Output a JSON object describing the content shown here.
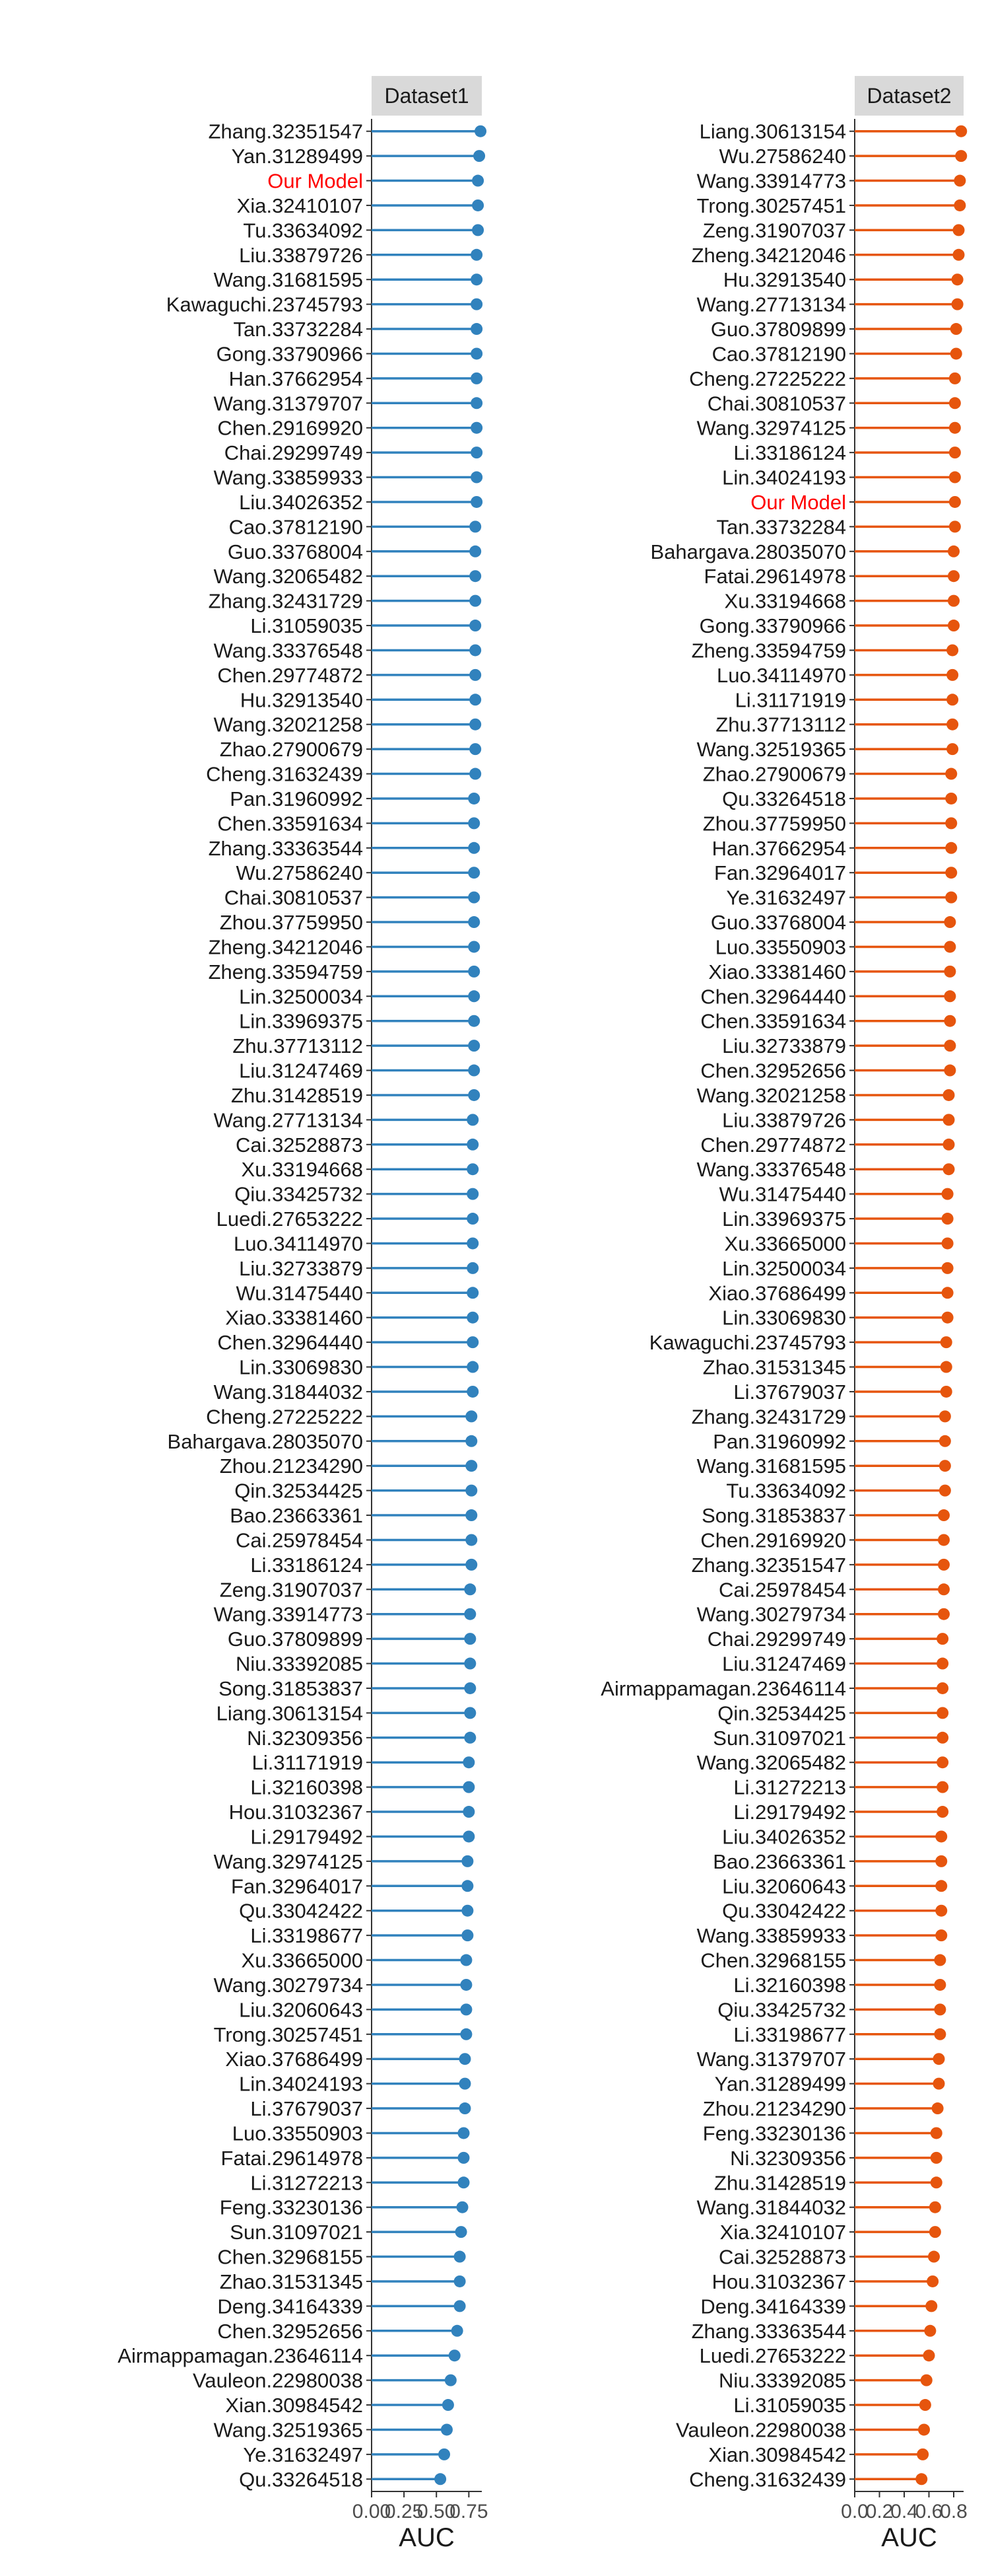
{
  "chart_data": [
    {
      "type": "lollipop",
      "panel_title": "Dataset1",
      "xlabel": "AUC",
      "xlim": [
        0,
        0.85
      ],
      "xticks": [
        0.0,
        0.25,
        0.5,
        0.75
      ],
      "xtick_labels": [
        "0.00",
        "0.25",
        "0.50",
        "0.75"
      ],
      "color": "#3182bd",
      "highlight": "Our Model",
      "highlight_color": "#ff0000",
      "categories": [
        "Zhang.32351547",
        "Yan.31289499",
        "Our Model",
        "Xia.32410107",
        "Tu.33634092",
        "Liu.33879726",
        "Wang.31681595",
        "Kawaguchi.23745793",
        "Tan.33732284",
        "Gong.33790966",
        "Han.37662954",
        "Wang.31379707",
        "Chen.29169920",
        "Chai.29299749",
        "Wang.33859933",
        "Liu.34026352",
        "Cao.37812190",
        "Guo.33768004",
        "Wang.32065482",
        "Zhang.32431729",
        "Li.31059035",
        "Wang.33376548",
        "Chen.29774872",
        "Hu.32913540",
        "Wang.32021258",
        "Zhao.27900679",
        "Cheng.31632439",
        "Pan.31960992",
        "Chen.33591634",
        "Zhang.33363544",
        "Wu.27586240",
        "Chai.30810537",
        "Zhou.37759950",
        "Zheng.34212046",
        "Zheng.33594759",
        "Lin.32500034",
        "Lin.33969375",
        "Zhu.37713112",
        "Liu.31247469",
        "Zhu.31428519",
        "Wang.27713134",
        "Cai.32528873",
        "Xu.33194668",
        "Qiu.33425732",
        "Luedi.27653222",
        "Luo.34114970",
        "Liu.32733879",
        "Wu.31475440",
        "Xiao.33381460",
        "Chen.32964440",
        "Lin.33069830",
        "Wang.31844032",
        "Cheng.27225222",
        "Bahargava.28035070",
        "Zhou.21234290",
        "Qin.32534425",
        "Bao.23663361",
        "Cai.25978454",
        "Li.33186124",
        "Zeng.31907037",
        "Wang.33914773",
        "Guo.37809899",
        "Niu.33392085",
        "Song.31853837",
        "Liang.30613154",
        "Ni.32309356",
        "Li.31171919",
        "Li.32160398",
        "Hou.31032367",
        "Li.29179492",
        "Wang.32974125",
        "Fan.32964017",
        "Qu.33042422",
        "Li.33198677",
        "Xu.33665000",
        "Wang.30279734",
        "Liu.32060643",
        "Trong.30257451",
        "Xiao.37686499",
        "Lin.34024193",
        "Li.37679037",
        "Luo.33550903",
        "Fatai.29614978",
        "Li.31272213",
        "Feng.33230136",
        "Sun.31097021",
        "Chen.32968155",
        "Zhao.31531345",
        "Deng.34164339",
        "Chen.32952656",
        "Airmappamagan.23646114",
        "Vauleon.22980038",
        "Xian.30984542",
        "Wang.32519365",
        "Ye.31632497",
        "Qu.33264518"
      ],
      "values": [
        0.84,
        0.83,
        0.82,
        0.82,
        0.82,
        0.81,
        0.81,
        0.81,
        0.81,
        0.81,
        0.81,
        0.81,
        0.81,
        0.81,
        0.81,
        0.81,
        0.8,
        0.8,
        0.8,
        0.8,
        0.8,
        0.8,
        0.8,
        0.8,
        0.8,
        0.8,
        0.8,
        0.79,
        0.79,
        0.79,
        0.79,
        0.79,
        0.79,
        0.79,
        0.79,
        0.79,
        0.79,
        0.79,
        0.79,
        0.79,
        0.78,
        0.78,
        0.78,
        0.78,
        0.78,
        0.78,
        0.78,
        0.78,
        0.78,
        0.78,
        0.78,
        0.78,
        0.77,
        0.77,
        0.77,
        0.77,
        0.77,
        0.77,
        0.77,
        0.76,
        0.76,
        0.76,
        0.76,
        0.76,
        0.76,
        0.76,
        0.75,
        0.75,
        0.75,
        0.75,
        0.74,
        0.74,
        0.74,
        0.74,
        0.73,
        0.73,
        0.73,
        0.73,
        0.72,
        0.72,
        0.72,
        0.71,
        0.71,
        0.71,
        0.7,
        0.69,
        0.68,
        0.68,
        0.68,
        0.66,
        0.64,
        0.61,
        0.59,
        0.58,
        0.56,
        0.53
      ]
    },
    {
      "type": "lollipop",
      "panel_title": "Dataset2",
      "xlabel": "AUC",
      "xlim": [
        0,
        0.88
      ],
      "xticks": [
        0.0,
        0.2,
        0.4,
        0.6,
        0.8
      ],
      "xtick_labels": [
        "0.0",
        "0.2",
        "0.4",
        "0.6",
        "0.8"
      ],
      "color": "#e6550d",
      "highlight": "Our Model",
      "highlight_color": "#ff0000",
      "categories": [
        "Liang.30613154",
        "Wu.27586240",
        "Wang.33914773",
        "Trong.30257451",
        "Zeng.31907037",
        "Zheng.34212046",
        "Hu.32913540",
        "Wang.27713134",
        "Guo.37809899",
        "Cao.37812190",
        "Cheng.27225222",
        "Chai.30810537",
        "Wang.32974125",
        "Li.33186124",
        "Lin.34024193",
        "Our Model",
        "Tan.33732284",
        "Bahargava.28035070",
        "Fatai.29614978",
        "Xu.33194668",
        "Gong.33790966",
        "Zheng.33594759",
        "Luo.34114970",
        "Li.31171919",
        "Zhu.37713112",
        "Wang.32519365",
        "Zhao.27900679",
        "Qu.33264518",
        "Zhou.37759950",
        "Han.37662954",
        "Fan.32964017",
        "Ye.31632497",
        "Guo.33768004",
        "Luo.33550903",
        "Xiao.33381460",
        "Chen.32964440",
        "Chen.33591634",
        "Liu.32733879",
        "Chen.32952656",
        "Wang.32021258",
        "Liu.33879726",
        "Chen.29774872",
        "Wang.33376548",
        "Wu.31475440",
        "Lin.33969375",
        "Xu.33665000",
        "Lin.32500034",
        "Xiao.37686499",
        "Lin.33069830",
        "Kawaguchi.23745793",
        "Zhao.31531345",
        "Li.37679037",
        "Zhang.32431729",
        "Pan.31960992",
        "Wang.31681595",
        "Tu.33634092",
        "Song.31853837",
        "Chen.29169920",
        "Zhang.32351547",
        "Cai.25978454",
        "Wang.30279734",
        "Chai.29299749",
        "Liu.31247469",
        "Airmappamagan.23646114",
        "Qin.32534425",
        "Sun.31097021",
        "Wang.32065482",
        "Li.31272213",
        "Li.29179492",
        "Liu.34026352",
        "Bao.23663361",
        "Liu.32060643",
        "Qu.33042422",
        "Wang.33859933",
        "Chen.32968155",
        "Li.32160398",
        "Qiu.33425732",
        "Li.33198677",
        "Wang.31379707",
        "Yan.31289499",
        "Zhou.21234290",
        "Feng.33230136",
        "Ni.32309356",
        "Zhu.31428519",
        "Wang.31844032",
        "Xia.32410107",
        "Cai.32528873",
        "Hou.31032367",
        "Deng.34164339",
        "Zhang.33363544",
        "Luedi.27653222",
        "Niu.33392085",
        "Li.31059035",
        "Vauleon.22980038",
        "Xian.30984542",
        "Cheng.31632439"
      ],
      "values": [
        0.86,
        0.86,
        0.85,
        0.85,
        0.84,
        0.84,
        0.83,
        0.83,
        0.82,
        0.82,
        0.81,
        0.81,
        0.81,
        0.81,
        0.81,
        0.81,
        0.81,
        0.8,
        0.8,
        0.8,
        0.8,
        0.79,
        0.79,
        0.79,
        0.79,
        0.79,
        0.78,
        0.78,
        0.78,
        0.78,
        0.78,
        0.78,
        0.77,
        0.77,
        0.77,
        0.77,
        0.77,
        0.77,
        0.77,
        0.76,
        0.76,
        0.76,
        0.76,
        0.75,
        0.75,
        0.75,
        0.75,
        0.75,
        0.75,
        0.74,
        0.74,
        0.74,
        0.73,
        0.73,
        0.73,
        0.73,
        0.72,
        0.72,
        0.72,
        0.72,
        0.72,
        0.71,
        0.71,
        0.71,
        0.71,
        0.71,
        0.71,
        0.71,
        0.71,
        0.7,
        0.7,
        0.7,
        0.7,
        0.7,
        0.69,
        0.69,
        0.69,
        0.69,
        0.68,
        0.68,
        0.67,
        0.66,
        0.66,
        0.66,
        0.65,
        0.65,
        0.64,
        0.63,
        0.62,
        0.61,
        0.6,
        0.58,
        0.57,
        0.56,
        0.55,
        0.54
      ]
    }
  ]
}
